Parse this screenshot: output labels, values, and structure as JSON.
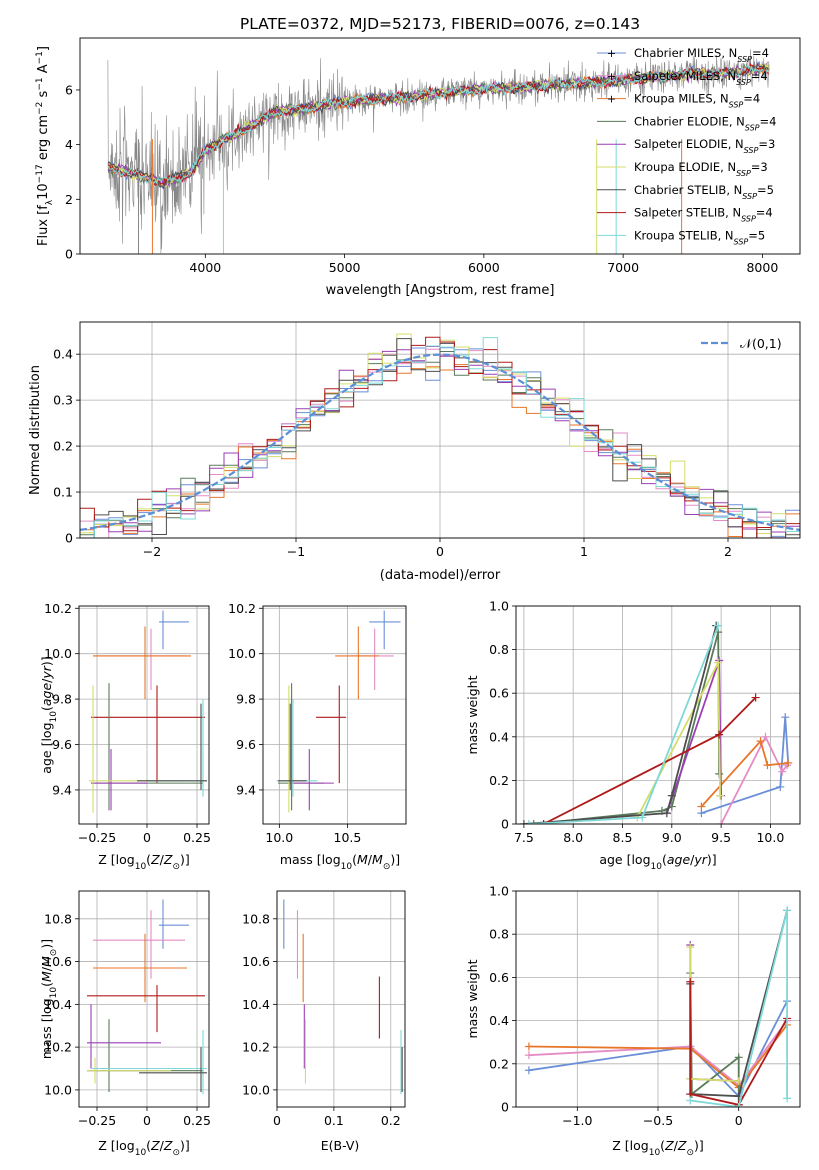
{
  "figure_title": "PLATE=0372, MJD=52173, FIBERID=0076, z=0.143",
  "colors": {
    "cb_miles": "#6a8fd8",
    "sp_miles": "#e58cc5",
    "kr_miles": "#e8762a",
    "cb_elodie": "#5a7a5a",
    "sp_elodie": "#9b3fb5",
    "kr_elodie": "#d4dd6a",
    "cb_stelib": "#4d4d4d",
    "sp_stelib": "#b01a1a",
    "kr_stelib": "#7fd8d8",
    "data_gray": "#888888",
    "gauss": "#5b8fd6"
  },
  "chart_data": [
    {
      "id": "spectrum",
      "type": "line",
      "xlabel": "wavelength [Angstrom, rest frame]",
      "ylabel": "Flux [f_λ10^-17 erg cm^-2 s^-1 A^-1]",
      "xlim": [
        3100,
        8270
      ],
      "ylim": [
        0,
        7.9
      ],
      "xticks": [
        4000,
        5000,
        6000,
        7000,
        8000
      ],
      "yticks": [
        0,
        2,
        4,
        6
      ],
      "legend": [
        "Chabrier MILES, N_SSP=4",
        "Salpeter MILES, N_SSP=4",
        "Kroupa MILES, N_SSP=4",
        "Chabrier ELODIE, N_SSP=4",
        "Salpeter ELODIE, N_SSP=3",
        "Kroupa ELODIE, N_SSP=3",
        "Chabrier STELIB, N_SSP=5",
        "Salpeter STELIB, N_SSP=4",
        "Kroupa STELIB, N_SSP=5"
      ],
      "legend_loc": "upper-right",
      "continuum_x": [
        3300,
        3500,
        3700,
        3900,
        4000,
        4100,
        4300,
        4500,
        4700,
        4900,
        5100,
        5300,
        5500,
        5700,
        5900,
        6100,
        6300,
        6500,
        6700,
        6900,
        7100,
        7300,
        7500,
        7700,
        7900,
        8050
      ],
      "continuum_y": [
        3.2,
        2.9,
        2.6,
        3.0,
        3.8,
        4.1,
        4.6,
        5.2,
        5.3,
        5.5,
        5.6,
        5.7,
        5.75,
        5.9,
        6.0,
        6.05,
        6.1,
        6.2,
        6.25,
        6.3,
        6.4,
        6.5,
        6.6,
        6.6,
        6.7,
        6.8
      ]
    },
    {
      "id": "residuals",
      "type": "histogram",
      "xlabel": "(data-model)/error",
      "ylabel": "Normed distribution",
      "xlim": [
        -2.5,
        2.5
      ],
      "ylim": [
        0,
        0.47
      ],
      "xticks": [
        -2,
        -1,
        0,
        1,
        2
      ],
      "yticks": [
        0.0,
        0.1,
        0.2,
        0.3,
        0.4
      ],
      "grid": true,
      "legend": [
        "𝒩(0,1)"
      ],
      "legend_loc": "upper-right",
      "bin_width": 0.1,
      "gauss": {
        "mu": 0,
        "sigma": 1,
        "peak": 0.399
      }
    },
    {
      "id": "age_vs_Z",
      "type": "errorbar",
      "xlabel": "Z [log10(Z/Z⊙)]",
      "ylabel": "age  [log10(age/yr)]",
      "xlim": [
        -0.34,
        0.31
      ],
      "ylim": [
        9.25,
        10.21
      ],
      "xticks": [
        -0.25,
        0.0,
        0.25
      ],
      "yticks": [
        9.4,
        9.6,
        9.8,
        10.0,
        10.2
      ],
      "grid": true,
      "points": [
        {
          "c": "cb_miles",
          "x": 0.08,
          "xe": [
            0.06,
            0.21
          ],
          "y": 10.14,
          "ye": [
            10.02,
            10.19
          ]
        },
        {
          "c": "sp_miles",
          "x": 0.02,
          "xe": [
            -0.27,
            0.19
          ],
          "y": 9.99,
          "ye": [
            9.84,
            10.11
          ]
        },
        {
          "c": "kr_miles",
          "x": -0.01,
          "xe": [
            -0.27,
            0.22
          ],
          "y": 9.99,
          "ye": [
            9.8,
            10.12
          ]
        },
        {
          "c": "sp_stelib",
          "x": 0.05,
          "xe": [
            -0.28,
            0.29
          ],
          "y": 9.72,
          "ye": [
            9.43,
            9.86
          ]
        },
        {
          "c": "cb_elodie",
          "x": -0.19,
          "xe": [
            -0.28,
            0.28
          ],
          "y": 9.43,
          "ye": [
            9.31,
            9.87
          ]
        },
        {
          "c": "sp_elodie",
          "x": -0.18,
          "xe": [
            -0.28,
            0.0
          ],
          "y": 9.43,
          "ye": [
            9.31,
            9.58
          ]
        },
        {
          "c": "kr_elodie",
          "x": -0.27,
          "xe": [
            -0.29,
            0.15
          ],
          "y": 9.44,
          "ye": [
            9.3,
            9.86
          ]
        },
        {
          "c": "kr_stelib",
          "x": 0.28,
          "xe": [
            0.0,
            0.3
          ],
          "y": 9.44,
          "ye": [
            9.37,
            9.8
          ]
        },
        {
          "c": "cb_stelib",
          "x": 0.27,
          "xe": [
            -0.05,
            0.3
          ],
          "y": 9.44,
          "ye": [
            9.4,
            9.78
          ]
        }
      ]
    },
    {
      "id": "age_vs_mass",
      "type": "errorbar",
      "xlabel": "mass [log10(M/M⊙)]",
      "ylabel": "",
      "xlim": [
        9.88,
        10.93
      ],
      "ylim": [
        9.25,
        10.21
      ],
      "xticks": [
        10.0,
        10.5
      ],
      "yticks": [
        9.4,
        9.6,
        9.8,
        10.0,
        10.2
      ],
      "grid": true,
      "points": [
        {
          "c": "cb_miles",
          "x": 10.77,
          "xe": [
            10.66,
            10.89
          ],
          "y": 10.14,
          "ye": [
            10.02,
            10.19
          ]
        },
        {
          "c": "sp_miles",
          "x": 10.7,
          "xe": [
            10.52,
            10.84
          ],
          "y": 9.99,
          "ye": [
            9.84,
            10.11
          ]
        },
        {
          "c": "kr_miles",
          "x": 10.58,
          "xe": [
            10.41,
            10.73
          ],
          "y": 9.99,
          "ye": [
            9.8,
            10.12
          ]
        },
        {
          "c": "sp_stelib",
          "x": 10.44,
          "xe": [
            10.27,
            10.49
          ],
          "y": 9.72,
          "ye": [
            9.43,
            9.86
          ]
        },
        {
          "c": "cb_elodie",
          "x": 10.09,
          "xe": [
            9.99,
            10.33
          ],
          "y": 9.43,
          "ye": [
            9.31,
            9.87
          ]
        },
        {
          "c": "sp_elodie",
          "x": 10.22,
          "xe": [
            10.1,
            10.4
          ],
          "y": 9.43,
          "ye": [
            9.31,
            9.58
          ]
        },
        {
          "c": "kr_elodie",
          "x": 10.07,
          "xe": [
            10.03,
            10.15
          ],
          "y": 9.44,
          "ye": [
            9.3,
            9.86
          ]
        },
        {
          "c": "kr_stelib",
          "x": 10.1,
          "xe": [
            9.98,
            10.28
          ],
          "y": 9.44,
          "ye": [
            9.37,
            9.8
          ]
        },
        {
          "c": "cb_stelib",
          "x": 10.08,
          "xe": [
            9.99,
            10.2
          ],
          "y": 9.44,
          "ye": [
            9.4,
            9.78
          ]
        }
      ]
    },
    {
      "id": "mass_weight_vs_age",
      "type": "line",
      "xlabel": "age  [log10(age/yr)]",
      "ylabel": "mass weight",
      "xlim": [
        7.42,
        10.3
      ],
      "ylim": [
        0,
        1.0
      ],
      "xticks": [
        7.5,
        8.0,
        8.5,
        9.0,
        9.5,
        10.0
      ],
      "yticks": [
        0.0,
        0.2,
        0.4,
        0.6,
        0.8,
        1.0
      ],
      "grid": true,
      "series": [
        {
          "c": "cb_miles",
          "x": [
            9.3,
            10.1,
            10.15,
            10.18
          ],
          "y": [
            0.05,
            0.17,
            0.49,
            0.28
          ]
        },
        {
          "c": "sp_miles",
          "x": [
            9.5,
            9.95,
            10.12,
            10.17
          ],
          "y": [
            0.0,
            0.4,
            0.24,
            0.27
          ]
        },
        {
          "c": "kr_miles",
          "x": [
            9.3,
            9.9,
            9.97,
            10.18
          ],
          "y": [
            0.08,
            0.38,
            0.27,
            0.28
          ]
        },
        {
          "c": "cb_elodie",
          "x": [
            7.6,
            8.9,
            9.0,
            9.47,
            9.48
          ],
          "y": [
            0.0,
            0.06,
            0.08,
            0.88,
            0.23
          ]
        },
        {
          "c": "sp_elodie",
          "x": [
            8.95,
            9.48,
            9.5
          ],
          "y": [
            0.05,
            0.75,
            0.13
          ]
        },
        {
          "c": "kr_elodie",
          "x": [
            8.65,
            9.47,
            9.49
          ],
          "y": [
            0.03,
            0.74,
            0.13
          ]
        },
        {
          "c": "cb_stelib",
          "x": [
            7.5,
            8.95,
            9.0,
            9.45
          ],
          "y": [
            0.0,
            0.05,
            0.13,
            0.91
          ]
        },
        {
          "c": "sp_stelib",
          "x": [
            7.7,
            9.48,
            9.85
          ],
          "y": [
            0.0,
            0.41,
            0.58
          ]
        },
        {
          "c": "kr_stelib",
          "x": [
            7.55,
            8.7,
            9.47
          ],
          "y": [
            0.0,
            0.03,
            0.91
          ]
        }
      ]
    },
    {
      "id": "mass_vs_Z",
      "type": "errorbar",
      "xlabel": "Z [log10(Z/Z⊙)]",
      "ylabel": "mass [log10(M/M⊙)]",
      "xlim": [
        -0.34,
        0.31
      ],
      "ylim": [
        9.92,
        10.93
      ],
      "xticks": [
        -0.25,
        0.0,
        0.25
      ],
      "yticks": [
        10.0,
        10.2,
        10.4,
        10.6,
        10.8
      ],
      "grid": true,
      "points": [
        {
          "c": "cb_miles",
          "x": 0.08,
          "xe": [
            0.06,
            0.21
          ],
          "y": 10.77,
          "ye": [
            10.66,
            10.89
          ]
        },
        {
          "c": "sp_miles",
          "x": 0.02,
          "xe": [
            -0.27,
            0.19
          ],
          "y": 10.7,
          "ye": [
            10.52,
            10.84
          ]
        },
        {
          "c": "kr_miles",
          "x": -0.01,
          "xe": [
            -0.27,
            0.2
          ],
          "y": 10.57,
          "ye": [
            10.41,
            10.73
          ]
        },
        {
          "c": "sp_stelib",
          "x": 0.05,
          "xe": [
            -0.3,
            0.29
          ],
          "y": 10.44,
          "ye": [
            10.27,
            10.49
          ]
        },
        {
          "c": "sp_elodie",
          "x": -0.28,
          "xe": [
            -0.3,
            0.07
          ],
          "y": 10.22,
          "ye": [
            10.1,
            10.4
          ]
        },
        {
          "c": "cb_elodie",
          "x": -0.19,
          "xe": [
            -0.3,
            0.28
          ],
          "y": 10.09,
          "ye": [
            9.99,
            10.33
          ]
        },
        {
          "c": "kr_elodie",
          "x": -0.26,
          "xe": [
            -0.3,
            0.12
          ],
          "y": 10.09,
          "ye": [
            10.03,
            10.15
          ]
        },
        {
          "c": "kr_stelib",
          "x": 0.28,
          "xe": [
            -0.28,
            0.3
          ],
          "y": 10.1,
          "ye": [
            9.98,
            10.28
          ]
        },
        {
          "c": "cb_stelib",
          "x": 0.27,
          "xe": [
            -0.04,
            0.3
          ],
          "y": 10.08,
          "ye": [
            9.99,
            10.2
          ]
        }
      ]
    },
    {
      "id": "mass_vs_ebv",
      "type": "errorbar",
      "xlabel": "E(B-V)",
      "ylabel": "",
      "xlim": [
        0.0,
        0.225
      ],
      "ylim": [
        9.92,
        10.93
      ],
      "xticks": [
        0.0,
        0.1,
        0.2
      ],
      "yticks": [
        10.0,
        10.2,
        10.4,
        10.6,
        10.8
      ],
      "grid": true,
      "points": [
        {
          "c": "cb_miles",
          "x": 0.012,
          "ye": [
            10.66,
            10.89
          ]
        },
        {
          "c": "sp_miles",
          "x": 0.036,
          "ye": [
            10.52,
            10.84
          ]
        },
        {
          "c": "kr_miles",
          "x": 0.046,
          "ye": [
            10.41,
            10.73
          ]
        },
        {
          "c": "sp_elodie",
          "x": 0.048,
          "ye": [
            10.1,
            10.4
          ]
        },
        {
          "c": "kr_elodie",
          "x": 0.05,
          "ye": [
            10.03,
            10.33
          ]
        },
        {
          "c": "sp_stelib",
          "x": 0.18,
          "ye": [
            10.24,
            10.53
          ]
        },
        {
          "c": "kr_stelib",
          "x": 0.218,
          "ye": [
            9.98,
            10.28
          ]
        },
        {
          "c": "cb_stelib",
          "x": 0.22,
          "ye": [
            9.99,
            10.2
          ]
        }
      ]
    },
    {
      "id": "mass_weight_vs_Z",
      "type": "line",
      "xlabel": "Z [log10(Z/Z⊙)]",
      "ylabel": "mass weight",
      "xlim": [
        -1.38,
        0.38
      ],
      "ylim": [
        0,
        1.0
      ],
      "xticks": [
        -1.0,
        -0.5,
        0.0
      ],
      "yticks": [
        0.0,
        0.2,
        0.4,
        0.6,
        0.8,
        1.0
      ],
      "grid": true,
      "series": [
        {
          "c": "cb_miles",
          "x": [
            -1.3,
            -0.3,
            0.0,
            0.3
          ],
          "y": [
            0.17,
            0.28,
            0.05,
            0.49
          ]
        },
        {
          "c": "sp_miles",
          "x": [
            -1.3,
            -0.3,
            0.0,
            0.3
          ],
          "y": [
            0.24,
            0.28,
            0.1,
            0.4
          ]
        },
        {
          "c": "kr_miles",
          "x": [
            -1.3,
            -0.3,
            0.0,
            0.3
          ],
          "y": [
            0.28,
            0.27,
            0.09,
            0.38
          ]
        },
        {
          "c": "cb_elodie",
          "x": [
            -0.3,
            -0.29,
            0.0,
            0.0
          ],
          "y": [
            0.62,
            0.06,
            0.23,
            0.01
          ]
        },
        {
          "c": "sp_elodie",
          "x": [
            -0.3,
            -0.3,
            0.0
          ],
          "y": [
            0.75,
            0.13,
            0.12
          ]
        },
        {
          "c": "kr_elodie",
          "x": [
            -0.3,
            -0.3,
            0.0
          ],
          "y": [
            0.74,
            0.13,
            0.12
          ]
        },
        {
          "c": "cb_stelib",
          "x": [
            -0.3,
            -0.3,
            0.0,
            0.3
          ],
          "y": [
            0.57,
            0.06,
            0.05,
            0.91
          ]
        },
        {
          "c": "sp_stelib",
          "x": [
            -0.3,
            -0.3,
            0.0,
            0.3
          ],
          "y": [
            0.58,
            0.06,
            0.01,
            0.41
          ]
        },
        {
          "c": "kr_stelib",
          "x": [
            -0.3,
            0.0,
            0.3,
            0.3
          ],
          "y": [
            0.03,
            0.0,
            0.91,
            0.04
          ]
        }
      ]
    }
  ]
}
